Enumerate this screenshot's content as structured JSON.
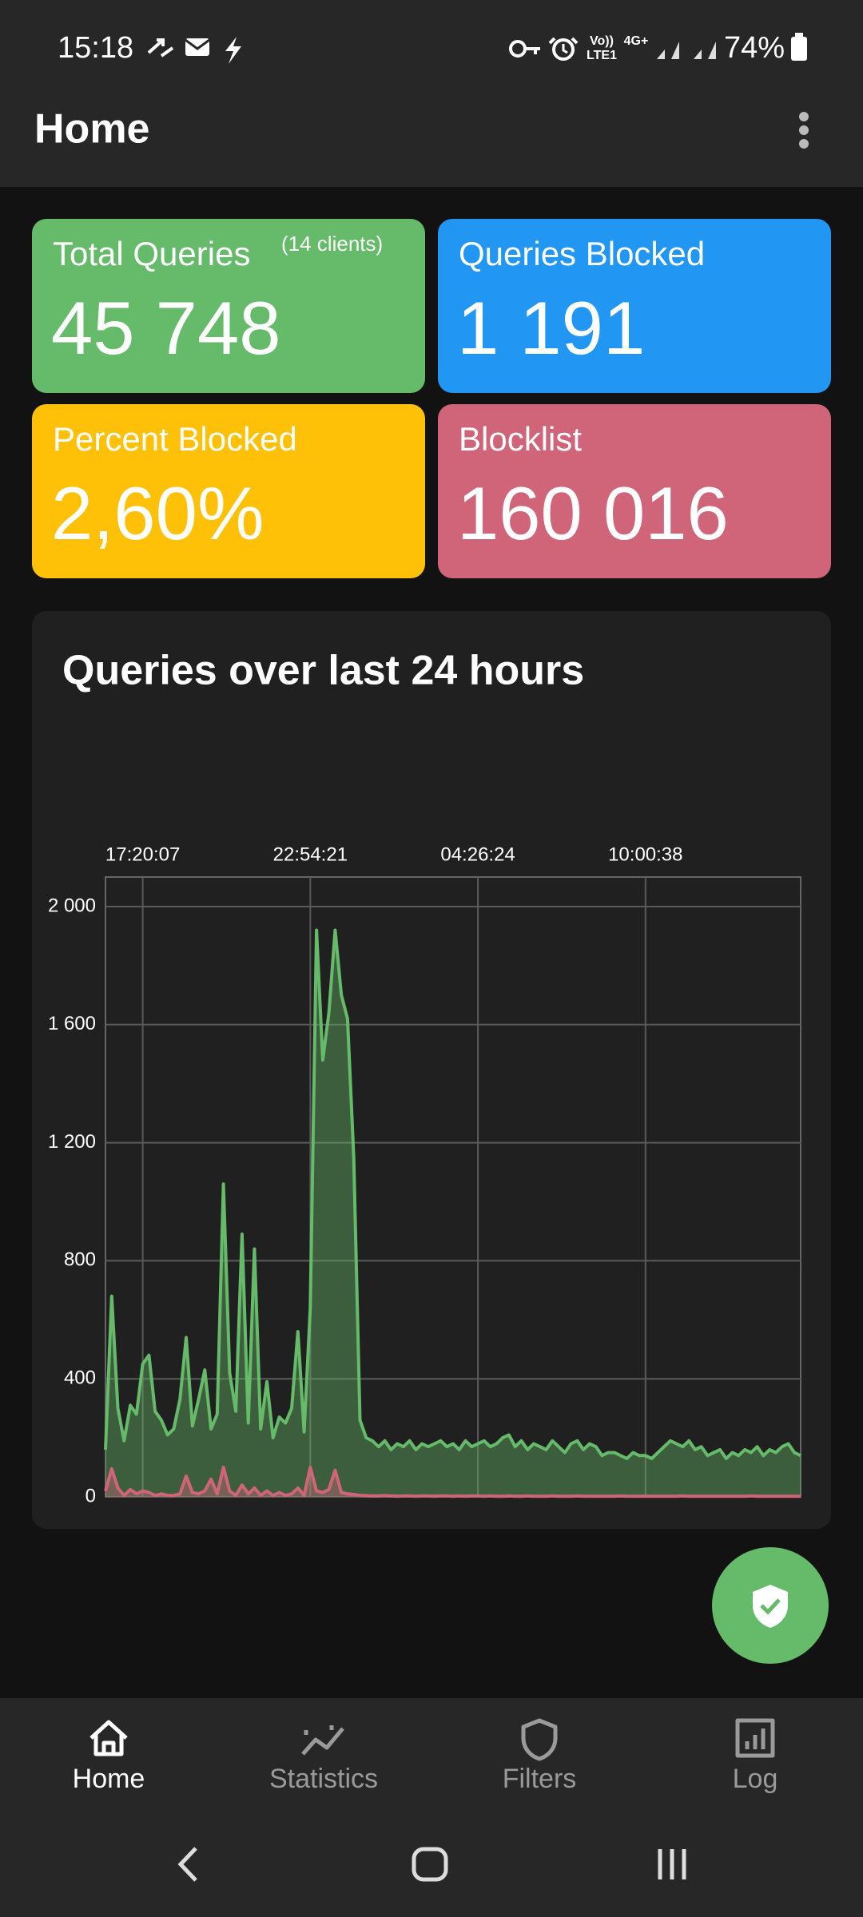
{
  "status_bar": {
    "time": "15:18",
    "volte": "Vo))",
    "lte": "LTE1",
    "network": "4G+",
    "battery": "74%"
  },
  "app_bar": {
    "title": "Home"
  },
  "cards": [
    {
      "title": "Total Queries",
      "note": "(14 clients)",
      "value": "45 748",
      "color": "#66bb6a"
    },
    {
      "title": "Queries Blocked",
      "value": "1 191",
      "color": "#2196f3"
    },
    {
      "title": "Percent Blocked",
      "value": "2,60%",
      "color": "#ffc107"
    },
    {
      "title": "Blocklist",
      "value": "160 016",
      "color": "#d0657a"
    }
  ],
  "chart": {
    "type": "line",
    "title": "Queries over last 24 hours",
    "categories": [
      null,
      null,
      null,
      null,
      null,
      null,
      "17:20:07",
      null,
      null,
      null,
      null,
      null,
      null,
      null,
      null,
      null,
      null,
      null,
      null,
      null,
      null,
      null,
      null,
      null,
      null,
      null,
      null,
      null,
      null,
      null,
      null,
      null,
      null,
      "22:54:21",
      null,
      null,
      null,
      null,
      null,
      null,
      null,
      null,
      null,
      null,
      null,
      null,
      null,
      null,
      null,
      null,
      null,
      null,
      null,
      null,
      null,
      null,
      null,
      null,
      null,
      null,
      "04:26:24",
      null,
      null,
      null,
      null,
      null,
      null,
      null,
      null,
      null,
      null,
      null,
      null,
      null,
      null,
      null,
      null,
      null,
      null,
      null,
      null,
      null,
      null,
      null,
      null,
      null,
      null,
      "10:00:38",
      null,
      null,
      null,
      null,
      null,
      null,
      null,
      null,
      null,
      null,
      null,
      null,
      null,
      null,
      null,
      null,
      null,
      null,
      null,
      null,
      null,
      null,
      null,
      null,
      null
    ],
    "series": [
      {
        "color": "#66bb6a",
        "values": [
          160,
          680,
          300,
          190,
          310,
          280,
          450,
          480,
          290,
          260,
          210,
          230,
          330,
          540,
          240,
          330,
          430,
          230,
          280,
          1060,
          420,
          290,
          890,
          250,
          840,
          230,
          390,
          200,
          270,
          250,
          300,
          560,
          220,
          640,
          1920,
          1480,
          1640,
          1920,
          1700,
          1620,
          1150,
          260,
          200,
          190,
          170,
          190,
          160,
          180,
          170,
          190,
          160,
          180,
          170,
          180,
          190,
          170,
          180,
          160,
          190,
          170,
          180,
          190,
          170,
          180,
          200,
          210,
          170,
          190,
          160,
          180,
          170,
          160,
          190,
          170,
          150,
          180,
          190,
          160,
          180,
          170,
          140,
          150,
          150,
          140,
          130,
          150,
          140,
          140,
          130,
          150,
          170,
          190,
          180,
          170,
          190,
          160,
          170,
          140,
          150,
          160,
          130,
          150,
          140,
          160,
          150,
          170,
          140,
          160,
          150,
          170,
          180,
          150,
          140
        ]
      },
      {
        "color": "#d0657a",
        "values": [
          20,
          95,
          30,
          5,
          25,
          10,
          20,
          15,
          5,
          10,
          5,
          5,
          10,
          70,
          15,
          10,
          20,
          60,
          10,
          100,
          20,
          5,
          40,
          10,
          30,
          5,
          20,
          5,
          15,
          5,
          10,
          30,
          5,
          100,
          20,
          15,
          25,
          90,
          15,
          10,
          8,
          5,
          4,
          3,
          3,
          4,
          3,
          2,
          3,
          3,
          2,
          3,
          3,
          2,
          3,
          3,
          2,
          3,
          2,
          3,
          3,
          2,
          3,
          2,
          2,
          3,
          2,
          2,
          3,
          2,
          2,
          2,
          3,
          2,
          2,
          2,
          3,
          2,
          2,
          2,
          2,
          2,
          2,
          3,
          2,
          2,
          2,
          2,
          2,
          2,
          2,
          2,
          2,
          3,
          2,
          2,
          2,
          2,
          2,
          2,
          2,
          2,
          2,
          2,
          3,
          2,
          2,
          2,
          2,
          2,
          2,
          2,
          2
        ]
      }
    ],
    "ylim": [
      0,
      2100
    ],
    "yticks": [
      0,
      400,
      800,
      {
        "value": 1200,
        "label": "1 200"
      },
      {
        "value": 1600,
        "label": "1 600"
      },
      {
        "value": 2000,
        "label": "2 000"
      }
    ],
    "grid": true
  },
  "nav": [
    {
      "label": "Home",
      "active": true
    },
    {
      "label": "Statistics",
      "active": false
    },
    {
      "label": "Filters",
      "active": false
    },
    {
      "label": "Log",
      "active": false
    }
  ]
}
